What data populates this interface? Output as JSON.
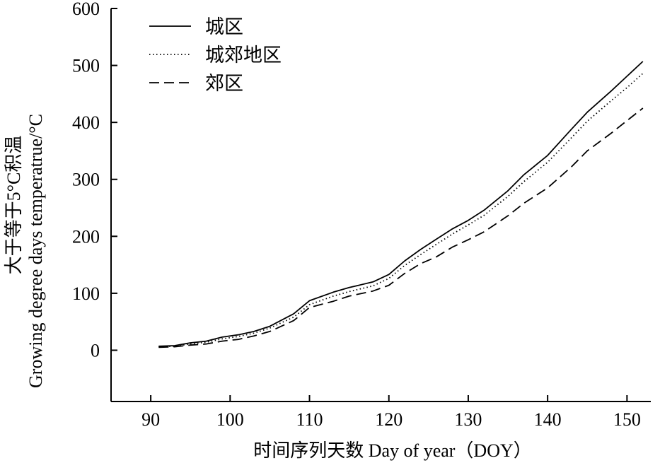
{
  "chart_data": {
    "type": "line",
    "title": "",
    "xlabel": "时间序列天数 Day of year（DOY）",
    "ylabel": [
      "大于等于5°C积温",
      "Growing degree days temperatrue/°C"
    ],
    "xlim": [
      85,
      153
    ],
    "ylim": [
      -90,
      600
    ],
    "xticks": [
      90,
      100,
      110,
      120,
      130,
      140,
      150
    ],
    "yticks": [
      0,
      100,
      200,
      300,
      400,
      500,
      600
    ],
    "legend_position": "top-left",
    "grid": false,
    "series": [
      {
        "name": "城区",
        "style": "solid",
        "x": [
          91,
          93,
          95,
          97,
          99,
          101,
          103,
          105,
          108,
          110,
          113,
          115,
          118,
          120,
          122,
          124,
          126,
          128,
          130,
          132,
          135,
          137,
          140,
          143,
          145,
          148,
          150,
          152
        ],
        "y": [
          7,
          8,
          13,
          16,
          23,
          27,
          33,
          42,
          64,
          87,
          102,
          110,
          120,
          133,
          157,
          177,
          195,
          213,
          228,
          246,
          280,
          308,
          342,
          388,
          418,
          455,
          481,
          507
        ]
      },
      {
        "name": "城郊地区",
        "style": "dotted",
        "x": [
          91,
          93,
          95,
          97,
          99,
          101,
          103,
          105,
          108,
          110,
          113,
          115,
          118,
          120,
          122,
          124,
          126,
          128,
          130,
          132,
          135,
          137,
          140,
          143,
          145,
          148,
          150,
          152
        ],
        "y": [
          6,
          7,
          11,
          14,
          20,
          24,
          30,
          39,
          58,
          80,
          95,
          103,
          113,
          126,
          149,
          168,
          186,
          204,
          220,
          237,
          270,
          296,
          330,
          373,
          402,
          438,
          461,
          486
        ]
      },
      {
        "name": "郊区",
        "style": "dashed",
        "x": [
          91,
          93,
          95,
          97,
          99,
          101,
          103,
          105,
          108,
          110,
          113,
          115,
          118,
          120,
          122,
          124,
          126,
          128,
          130,
          132,
          135,
          137,
          140,
          143,
          145,
          148,
          150,
          152
        ],
        "y": [
          5,
          6,
          9,
          11,
          16,
          19,
          25,
          33,
          52,
          75,
          86,
          95,
          104,
          114,
          135,
          152,
          164,
          181,
          194,
          208,
          236,
          258,
          285,
          322,
          350,
          381,
          403,
          425
        ]
      }
    ]
  }
}
